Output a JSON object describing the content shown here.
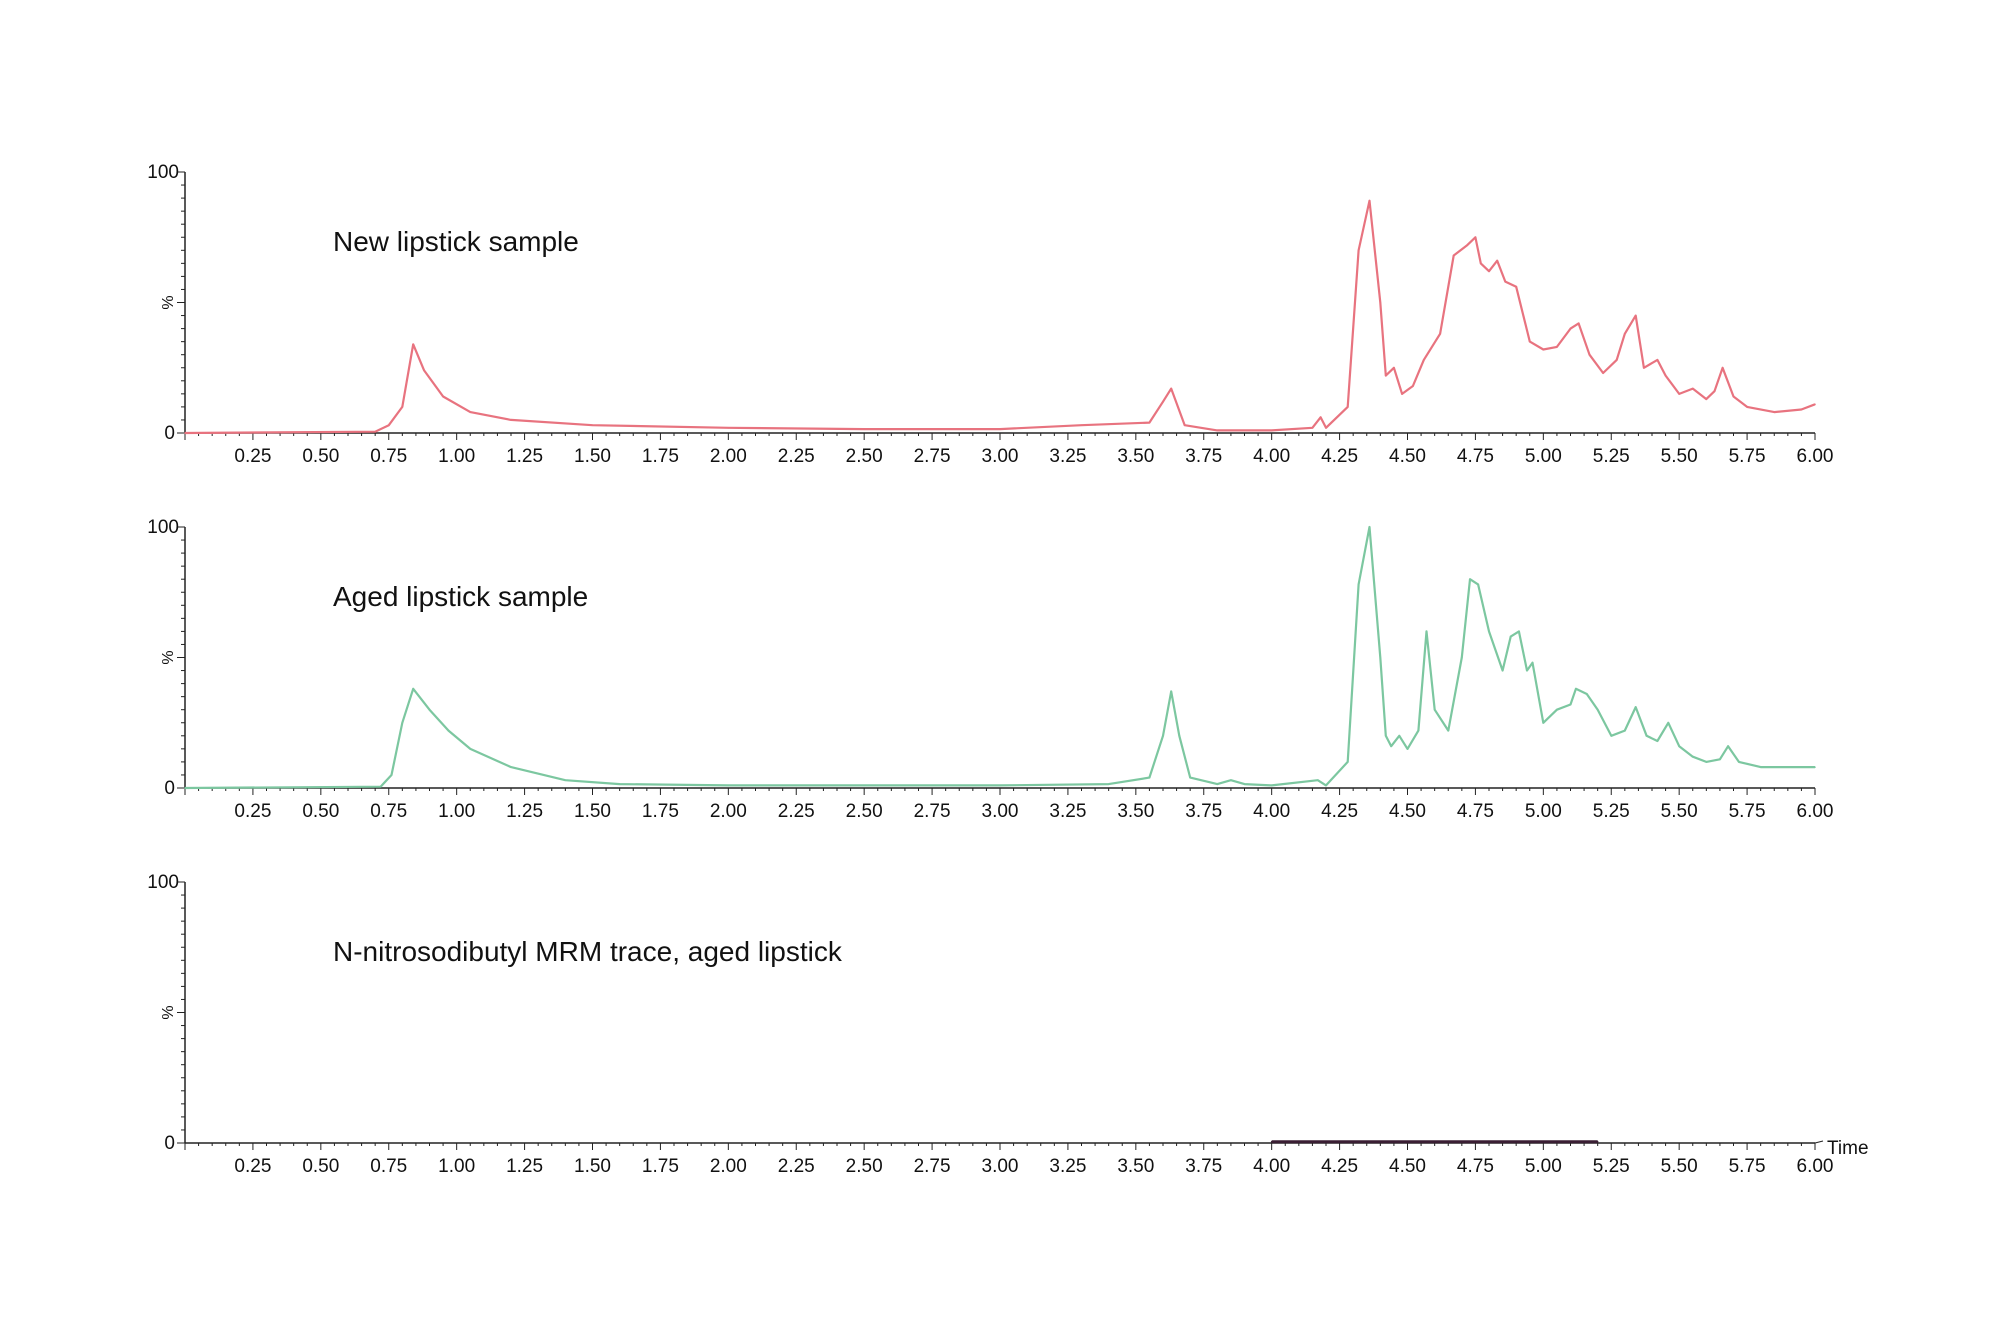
{
  "chart_data": [
    {
      "type": "line",
      "title": "New lipstick sample",
      "xlabel": "",
      "ylabel": "%",
      "xlim": [
        0,
        6.0
      ],
      "ylim": [
        0,
        100
      ],
      "xticks": [
        "0.25",
        "0.50",
        "0.75",
        "1.00",
        "1.25",
        "1.50",
        "1.75",
        "2.00",
        "2.25",
        "2.50",
        "2.75",
        "3.00",
        "3.25",
        "3.50",
        "3.75",
        "4.00",
        "4.25",
        "4.50",
        "4.75",
        "5.00",
        "5.25",
        "5.50",
        "5.75",
        "6.00"
      ],
      "yticks": [
        "100",
        "0"
      ],
      "color": "#e8737f",
      "series": [
        {
          "x": [
            0,
            0.7,
            0.75,
            0.8,
            0.84,
            0.88,
            0.95,
            1.05,
            1.2,
            1.5,
            2.0,
            2.5,
            3.0,
            3.3,
            3.55,
            3.6,
            3.63,
            3.68,
            3.8,
            4.0,
            4.15,
            4.18,
            4.2,
            4.28,
            4.32,
            4.36,
            4.4,
            4.42,
            4.45,
            4.48,
            4.52,
            4.56,
            4.62,
            4.67,
            4.72,
            4.75,
            4.77,
            4.8,
            4.83,
            4.86,
            4.9,
            4.95,
            5.0,
            5.05,
            5.1,
            5.13,
            5.17,
            5.22,
            5.27,
            5.3,
            5.34,
            5.37,
            5.42,
            5.45,
            5.5,
            5.55,
            5.6,
            5.63,
            5.66,
            5.7,
            5.75,
            5.85,
            5.95,
            6.0
          ],
          "y": [
            0,
            0.5,
            3,
            10,
            34,
            24,
            14,
            8,
            5,
            3,
            2,
            1.5,
            1.5,
            3,
            4,
            12,
            17,
            3,
            1,
            1,
            2,
            6,
            2,
            10,
            70,
            89,
            50,
            22,
            25,
            15,
            18,
            28,
            38,
            68,
            72,
            75,
            65,
            62,
            66,
            58,
            56,
            35,
            32,
            33,
            40,
            42,
            30,
            23,
            28,
            38,
            45,
            25,
            28,
            22,
            15,
            17,
            13,
            16,
            25,
            14,
            10,
            8,
            9,
            11
          ]
        }
      ]
    },
    {
      "type": "line",
      "title": "Aged lipstick sample",
      "xlabel": "",
      "ylabel": "%",
      "xlim": [
        0,
        6.0
      ],
      "ylim": [
        0,
        100
      ],
      "xticks": [
        "0.25",
        "0.50",
        "0.75",
        "1.00",
        "1.25",
        "1.50",
        "1.75",
        "2.00",
        "2.25",
        "2.50",
        "2.75",
        "3.00",
        "3.25",
        "3.50",
        "3.75",
        "4.00",
        "4.25",
        "4.50",
        "4.75",
        "5.00",
        "5.25",
        "5.50",
        "5.75",
        "6.00"
      ],
      "yticks": [
        "100",
        "0"
      ],
      "color": "#7cc7a0",
      "series": [
        {
          "x": [
            0,
            0.72,
            0.76,
            0.8,
            0.84,
            0.9,
            0.97,
            1.05,
            1.2,
            1.4,
            1.6,
            2.0,
            2.5,
            3.0,
            3.4,
            3.55,
            3.6,
            3.63,
            3.66,
            3.7,
            3.8,
            3.85,
            3.9,
            4.0,
            4.17,
            4.2,
            4.28,
            4.32,
            4.36,
            4.4,
            4.42,
            4.44,
            4.47,
            4.5,
            4.54,
            4.57,
            4.6,
            4.65,
            4.7,
            4.73,
            4.76,
            4.8,
            4.85,
            4.88,
            4.91,
            4.94,
            4.96,
            5.0,
            5.05,
            5.1,
            5.12,
            5.16,
            5.2,
            5.25,
            5.3,
            5.34,
            5.38,
            5.42,
            5.46,
            5.5,
            5.55,
            5.6,
            5.65,
            5.68,
            5.72,
            5.8,
            5.9,
            6.0
          ],
          "y": [
            0,
            0.5,
            5,
            25,
            38,
            30,
            22,
            15,
            8,
            3,
            1.5,
            1,
            1,
            1,
            1.5,
            4,
            20,
            37,
            20,
            4,
            1.5,
            3,
            1.5,
            1,
            3,
            1,
            10,
            78,
            100,
            50,
            20,
            16,
            20,
            15,
            22,
            60,
            30,
            22,
            50,
            80,
            78,
            60,
            45,
            58,
            60,
            45,
            48,
            25,
            30,
            32,
            38,
            36,
            30,
            20,
            22,
            31,
            20,
            18,
            25,
            16,
            12,
            10,
            11,
            16,
            10,
            8,
            8,
            8
          ]
        }
      ]
    },
    {
      "type": "line",
      "title": "N-nitrosodibutyl MRM trace, aged lipstick",
      "xlabel": "Time",
      "ylabel": "%",
      "xlim": [
        0,
        6.0
      ],
      "ylim": [
        0,
        100
      ],
      "xticks": [
        "0.25",
        "0.50",
        "0.75",
        "1.00",
        "1.25",
        "1.50",
        "1.75",
        "2.00",
        "2.25",
        "2.50",
        "2.75",
        "3.00",
        "3.25",
        "3.50",
        "3.75",
        "4.00",
        "4.25",
        "4.50",
        "4.75",
        "5.00",
        "5.25",
        "5.50",
        "5.75",
        "6.00"
      ],
      "yticks": [
        "100",
        "0"
      ],
      "color": "#3a1e33",
      "series": [
        {
          "x": [
            4.0,
            5.2
          ],
          "y": [
            0.5,
            0.5
          ]
        }
      ]
    }
  ]
}
